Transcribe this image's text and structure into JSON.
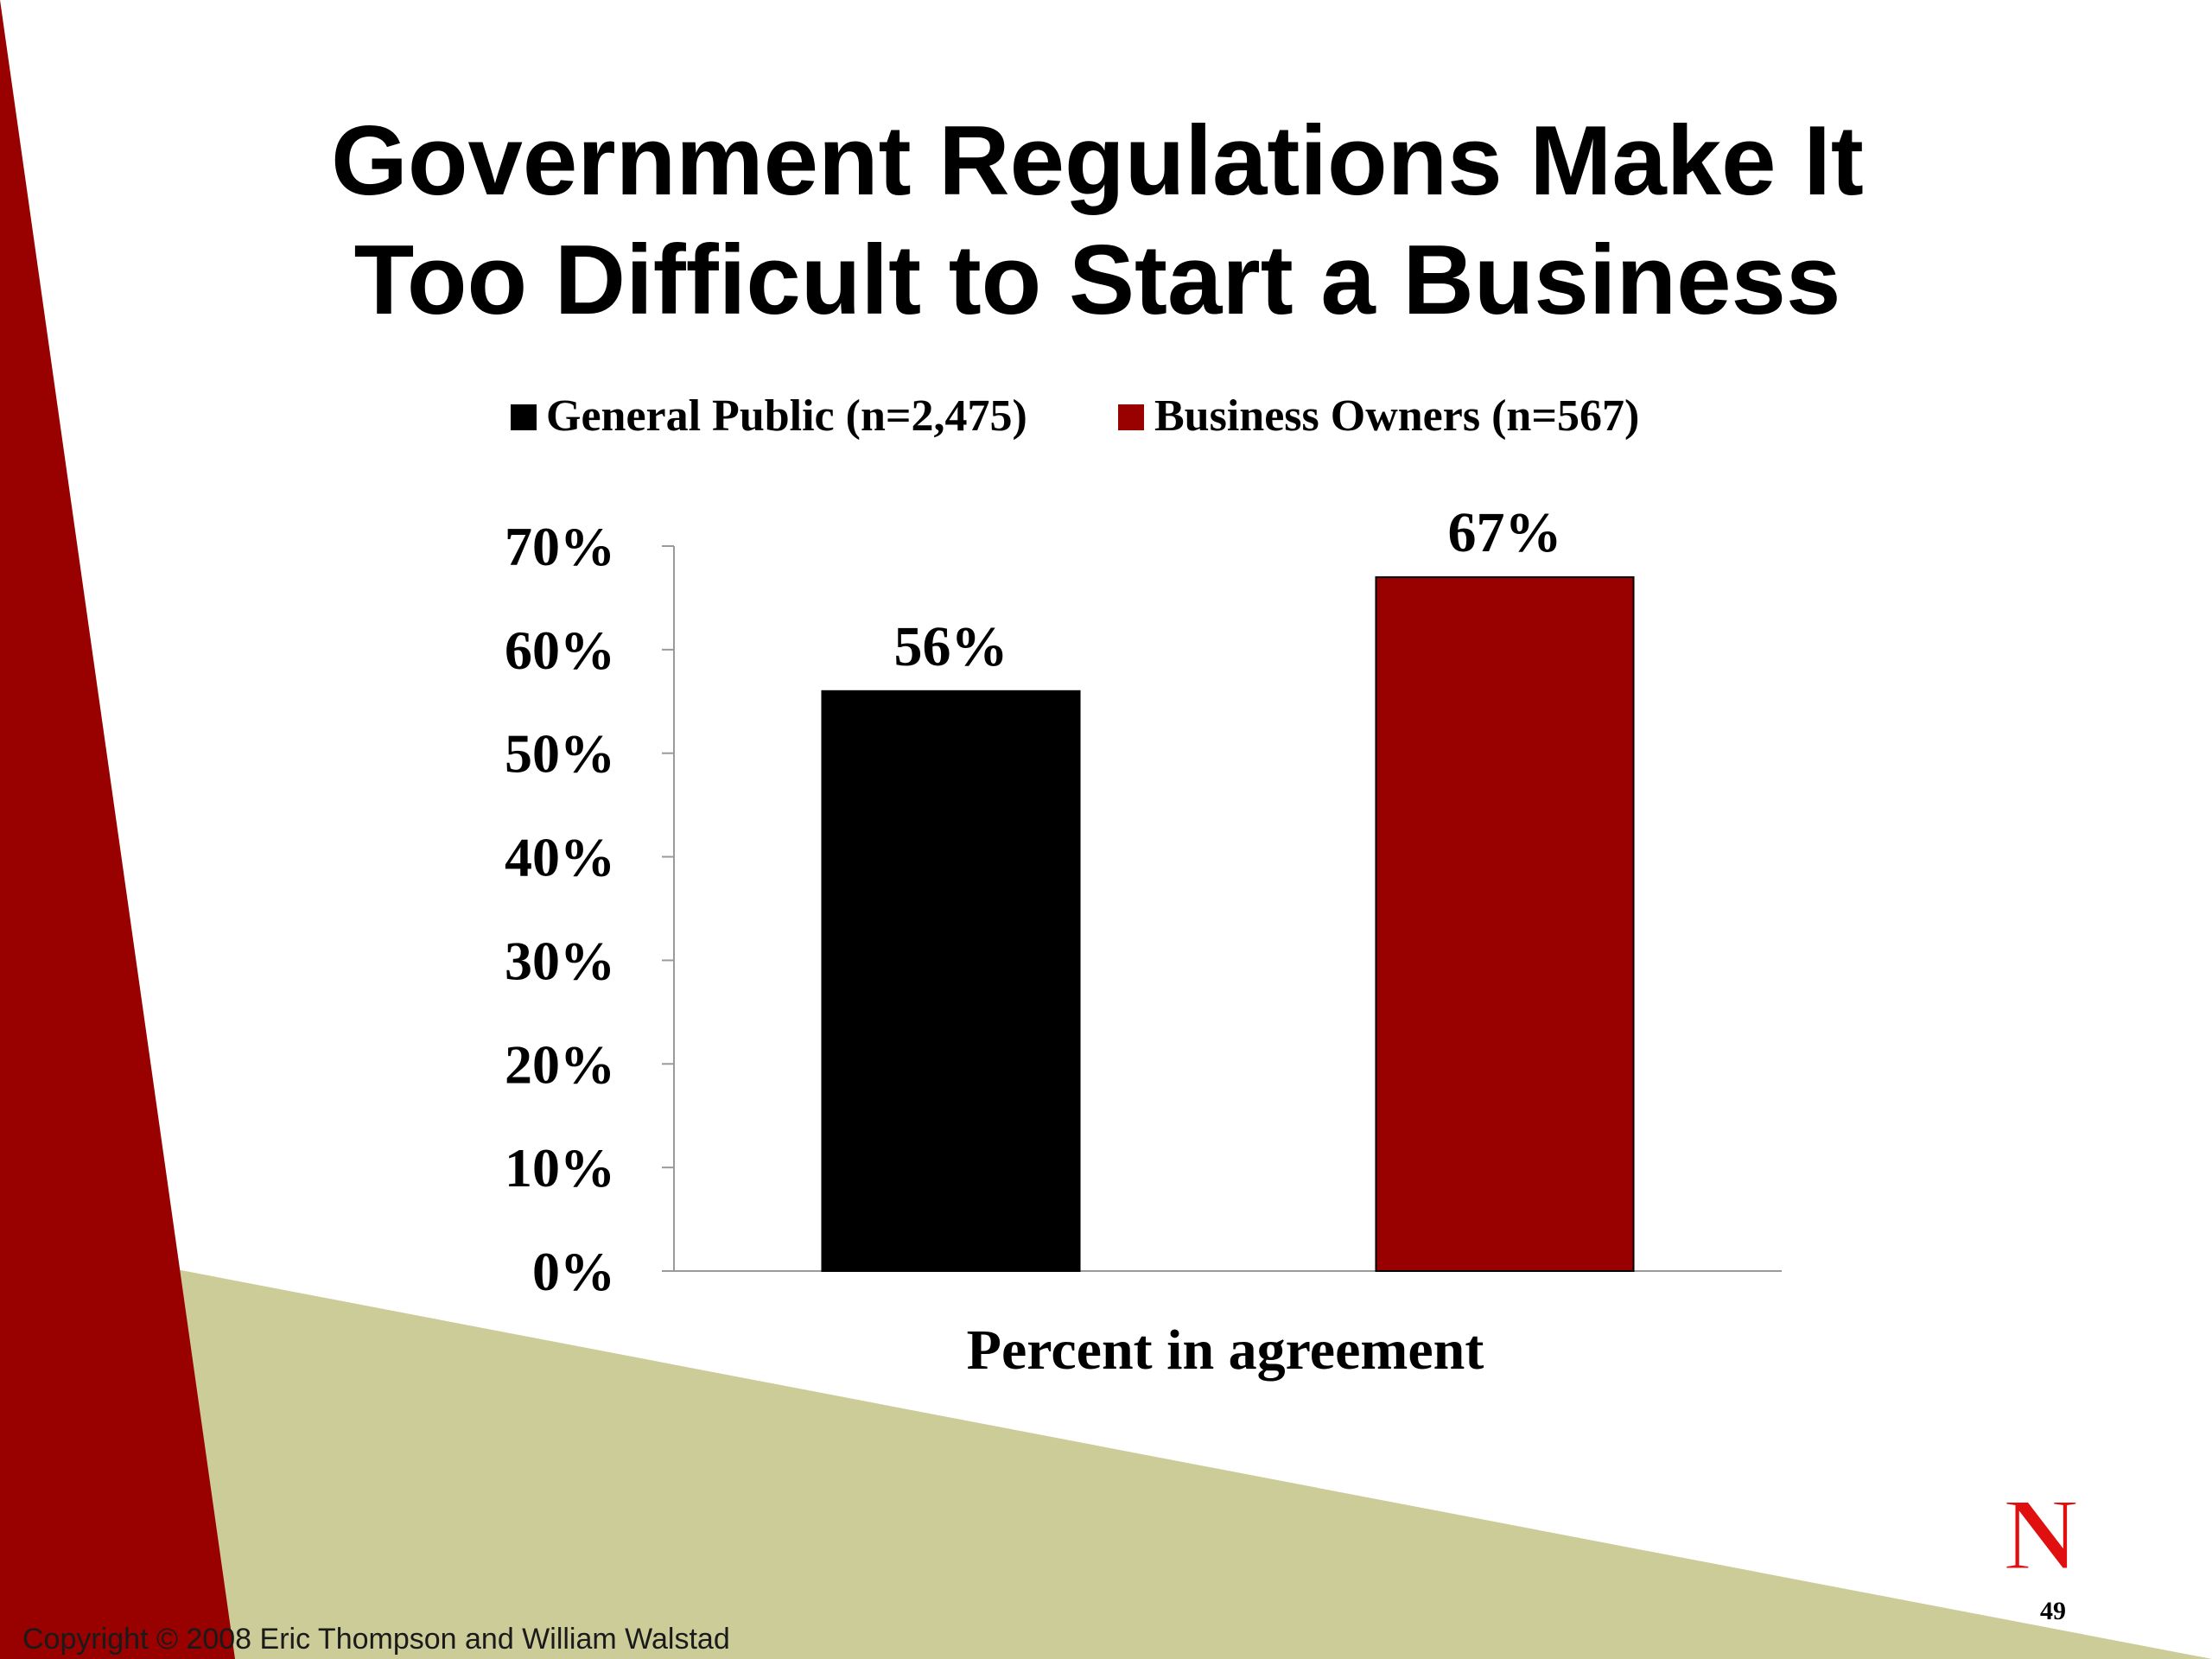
{
  "slide": {
    "title_line1": "Government Regulations Make It",
    "title_line2": "Too Difficult to Start a Business",
    "copyright": "Copyright © 2008 Eric Thompson and William Walstad",
    "page_number": "49",
    "logo_letter": "N",
    "colors": {
      "left_band": "#990000",
      "bottom_band": "#CCCC99",
      "accent_red": "#990000",
      "logo_red": "#E01010"
    }
  },
  "chart_data": {
    "type": "bar",
    "title": "",
    "xlabel": "Percent in agreement",
    "ylabel": "",
    "ylim": [
      0,
      70
    ],
    "yticks": [
      "0%",
      "10%",
      "20%",
      "30%",
      "40%",
      "50%",
      "60%",
      "70%"
    ],
    "legend_position": "top",
    "grid": false,
    "series": [
      {
        "name": "General Public (n=2,475)",
        "values": [
          56
        ],
        "label": "56%",
        "color": "#000000"
      },
      {
        "name": "Business Owners (n=567)",
        "values": [
          67
        ],
        "label": "67%",
        "color": "#990000"
      }
    ],
    "categories": [
      "Percent in agreement"
    ]
  }
}
